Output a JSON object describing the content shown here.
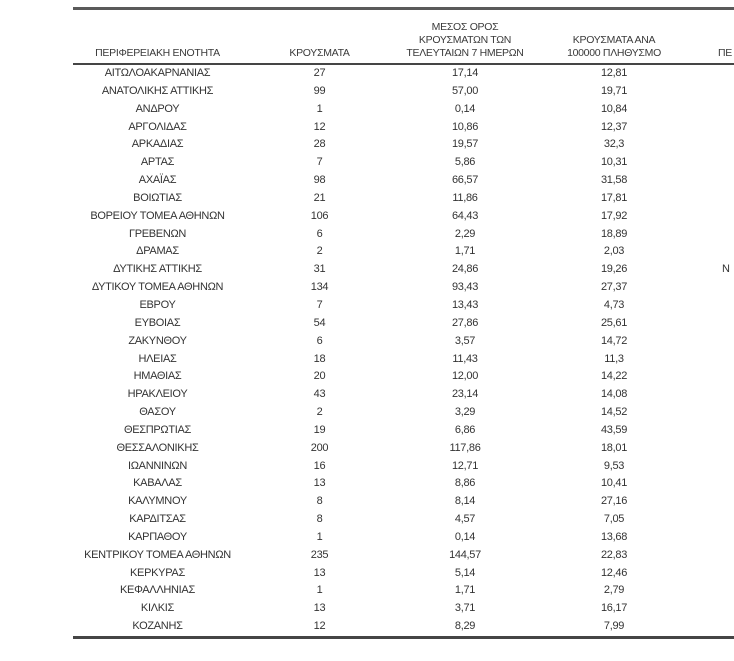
{
  "table": {
    "columns": [
      {
        "label": "ΠΕΡΙΦΕΡΕΙΑΚΗ ΕΝΟΤΗΤΑ"
      },
      {
        "label": "ΚΡΟΥΣΜΑΤΑ"
      },
      {
        "label": "ΜΕΣΟΣ ΟΡΟΣ\nΚΡΟΥΣΜΑΤΩΝ ΤΩΝ\nΤΕΛΕΥΤΑΙΩΝ 7 ΗΜΕΡΩΝ"
      },
      {
        "label": "ΚΡΟΥΣΜΑΤΑ ΑΝΑ\n100000 ΠΛΗΘΥΣΜΟ"
      },
      {
        "label": "ΠΕ"
      }
    ],
    "rows": [
      {
        "cells": [
          "ΑΙΤΩΛΟΑΚΑΡΝΑΝΙΑΣ",
          "27",
          "17,14",
          "12,81",
          ""
        ]
      },
      {
        "cells": [
          "ΑΝΑΤΟΛΙΚΗΣ ΑΤΤΙΚΗΣ",
          "99",
          "57,00",
          "19,71",
          ""
        ]
      },
      {
        "cells": [
          "ΑΝΔΡΟΥ",
          "1",
          "0,14",
          "10,84",
          ""
        ]
      },
      {
        "cells": [
          "ΑΡΓΟΛΙΔΑΣ",
          "12",
          "10,86",
          "12,37",
          ""
        ]
      },
      {
        "cells": [
          "ΑΡΚΑΔΙΑΣ",
          "28",
          "19,57",
          "32,3",
          ""
        ]
      },
      {
        "cells": [
          "ΑΡΤΑΣ",
          "7",
          "5,86",
          "10,31",
          ""
        ]
      },
      {
        "cells": [
          "ΑΧΑΪΑΣ",
          "98",
          "66,57",
          "31,58",
          ""
        ]
      },
      {
        "cells": [
          "ΒΟΙΩΤΙΑΣ",
          "21",
          "11,86",
          "17,81",
          ""
        ]
      },
      {
        "cells": [
          "ΒΟΡΕΙΟΥ ΤΟΜΕΑ ΑΘΗΝΩΝ",
          "106",
          "64,43",
          "17,92",
          ""
        ]
      },
      {
        "cells": [
          "ΓΡΕΒΕΝΩΝ",
          "6",
          "2,29",
          "18,89",
          ""
        ]
      },
      {
        "cells": [
          "ΔΡΑΜΑΣ",
          "2",
          "1,71",
          "2,03",
          ""
        ]
      },
      {
        "cells": [
          "ΔΥΤΙΚΗΣ ΑΤΤΙΚΗΣ",
          "31",
          "24,86",
          "19,26",
          "Ν"
        ]
      },
      {
        "cells": [
          "ΔΥΤΙΚΟΥ ΤΟΜΕΑ ΑΘΗΝΩΝ",
          "134",
          "93,43",
          "27,37",
          ""
        ]
      },
      {
        "cells": [
          "ΕΒΡΟΥ",
          "7",
          "13,43",
          "4,73",
          ""
        ]
      },
      {
        "cells": [
          "ΕΥΒΟΙΑΣ",
          "54",
          "27,86",
          "25,61",
          ""
        ]
      },
      {
        "cells": [
          "ΖΑΚΥΝΘΟΥ",
          "6",
          "3,57",
          "14,72",
          ""
        ]
      },
      {
        "cells": [
          "ΗΛΕΙΑΣ",
          "18",
          "11,43",
          "11,3",
          ""
        ]
      },
      {
        "cells": [
          "ΗΜΑΘΙΑΣ",
          "20",
          "12,00",
          "14,22",
          ""
        ]
      },
      {
        "cells": [
          "ΗΡΑΚΛΕΙΟΥ",
          "43",
          "23,14",
          "14,08",
          ""
        ]
      },
      {
        "cells": [
          "ΘΑΣΟΥ",
          "2",
          "3,29",
          "14,52",
          ""
        ]
      },
      {
        "cells": [
          "ΘΕΣΠΡΩΤΙΑΣ",
          "19",
          "6,86",
          "43,59",
          ""
        ]
      },
      {
        "cells": [
          "ΘΕΣΣΑΛΟΝΙΚΗΣ",
          "200",
          "117,86",
          "18,01",
          ""
        ]
      },
      {
        "cells": [
          "ΙΩΑΝΝΙΝΩΝ",
          "16",
          "12,71",
          "9,53",
          ""
        ]
      },
      {
        "cells": [
          "ΚΑΒΑΛΑΣ",
          "13",
          "8,86",
          "10,41",
          ""
        ]
      },
      {
        "cells": [
          "ΚΑΛΥΜΝΟΥ",
          "8",
          "8,14",
          "27,16",
          ""
        ]
      },
      {
        "cells": [
          "ΚΑΡΔΙΤΣΑΣ",
          "8",
          "4,57",
          "7,05",
          ""
        ]
      },
      {
        "cells": [
          "ΚΑΡΠΑΘΟΥ",
          "1",
          "0,14",
          "13,68",
          ""
        ]
      },
      {
        "cells": [
          "ΚΕΝΤΡΙΚΟΥ ΤΟΜΕΑ ΑΘΗΝΩΝ",
          "235",
          "144,57",
          "22,83",
          ""
        ]
      },
      {
        "cells": [
          "ΚΕΡΚΥΡΑΣ",
          "13",
          "5,14",
          "12,46",
          ""
        ]
      },
      {
        "cells": [
          "ΚΕΦΑΛΛΗΝΙΑΣ",
          "1",
          "1,71",
          "2,79",
          ""
        ]
      },
      {
        "cells": [
          "ΚΙΛΚΙΣ",
          "13",
          "3,71",
          "16,17",
          ""
        ]
      },
      {
        "cells": [
          "ΚΟΖΑΝΗΣ",
          "12",
          "8,29",
          "7,99",
          ""
        ]
      }
    ]
  },
  "colors": {
    "text": "#333333",
    "rule_top": "#5a5a5a",
    "rule_header": "#454545",
    "rule_bottom": "#454545",
    "background": "#ffffff"
  }
}
